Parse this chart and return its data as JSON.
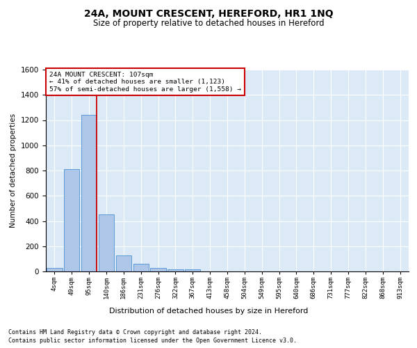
{
  "title": "24A, MOUNT CRESCENT, HEREFORD, HR1 1NQ",
  "subtitle": "Size of property relative to detached houses in Hereford",
  "xlabel": "Distribution of detached houses by size in Hereford",
  "ylabel": "Number of detached properties",
  "footnote1": "Contains HM Land Registry data © Crown copyright and database right 2024.",
  "footnote2": "Contains public sector information licensed under the Open Government Licence v3.0.",
  "annotation_title": "24A MOUNT CRESCENT: 107sqm",
  "annotation_line1": "← 41% of detached houses are smaller (1,123)",
  "annotation_line2": "57% of semi-detached houses are larger (1,558) →",
  "bar_categories": [
    "4sqm",
    "49sqm",
    "95sqm",
    "140sqm",
    "186sqm",
    "231sqm",
    "276sqm",
    "322sqm",
    "367sqm",
    "413sqm",
    "458sqm",
    "504sqm",
    "549sqm",
    "595sqm",
    "640sqm",
    "686sqm",
    "731sqm",
    "777sqm",
    "822sqm",
    "868sqm",
    "913sqm"
  ],
  "bar_values": [
    25,
    810,
    1240,
    455,
    125,
    60,
    28,
    18,
    15,
    0,
    0,
    0,
    0,
    0,
    0,
    0,
    0,
    0,
    0,
    0,
    0
  ],
  "bar_color": "#aec6e8",
  "bar_edge_color": "#5b9bd5",
  "vline_color": "#cc0000",
  "annotation_box_color": "#cc0000",
  "background_color": "#dce9f7",
  "ylim": [
    0,
    1600
  ],
  "yticks": [
    0,
    200,
    400,
    600,
    800,
    1000,
    1200,
    1400,
    1600
  ]
}
